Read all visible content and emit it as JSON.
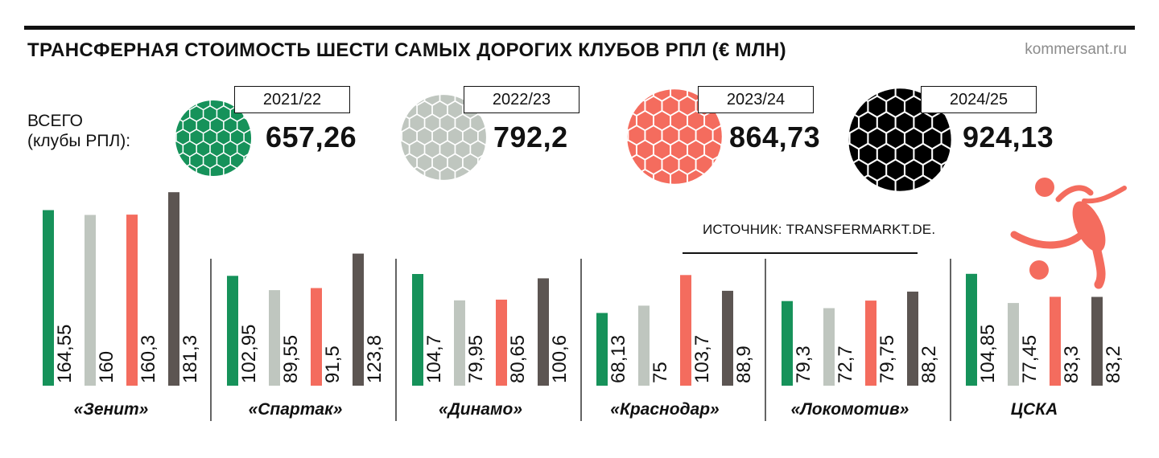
{
  "header": {
    "title": "ТРАНСФЕРНАЯ СТОИМОСТЬ ШЕСТИ САМЫХ ДОРОГИХ КЛУБОВ РПЛ (€ МЛН)",
    "site": "kommersant.ru"
  },
  "totals": {
    "label_line1": "ВСЕГО",
    "label_line2": "(клубы РПЛ):",
    "seasons": [
      {
        "season": "2021/22",
        "total": "657,26",
        "color": "#16925a"
      },
      {
        "season": "2022/23",
        "total": "792,2",
        "color": "#bfc6bf"
      },
      {
        "season": "2023/24",
        "total": "864,73",
        "color": "#f46c5e"
      },
      {
        "season": "2024/25",
        "total": "924,13",
        "color": "#000000"
      }
    ]
  },
  "source": "ИСТОЧНИК: TRANSFERMARKT.DE.",
  "colors": {
    "s2021": "#16925a",
    "s2022": "#bfc6bf",
    "s2023": "#f46c5e",
    "s2024": "#5c5552",
    "player": "#f46c5e"
  },
  "icons": [
    "football-icon",
    "soccer-player-icon"
  ],
  "chart_data": {
    "type": "bar",
    "categories": [
      "«Зенит»",
      "«Спартак»",
      "«Динамо»",
      "«Краснодар»",
      "«Локомотив»",
      "ЦСКА"
    ],
    "series": [
      {
        "name": "2021/22",
        "values": [
          164.55,
          102.95,
          104.7,
          68.13,
          79.3,
          104.85
        ],
        "labels": [
          "164,55",
          "102,95",
          "104,7",
          "68,13",
          "79,3",
          "104,85"
        ]
      },
      {
        "name": "2022/23",
        "values": [
          160,
          89.55,
          79.95,
          75,
          72.7,
          77.45
        ],
        "labels": [
          "160",
          "89,55",
          "79,95",
          "75",
          "72,7",
          "77,45"
        ]
      },
      {
        "name": "2023/24",
        "values": [
          160.3,
          91.5,
          80.65,
          103.7,
          79.75,
          83.3
        ],
        "labels": [
          "160,3",
          "91,5",
          "80,65",
          "103,7",
          "79,75",
          "83,3"
        ]
      },
      {
        "name": "2024/25",
        "values": [
          181.3,
          123.8,
          100.6,
          88.9,
          88.2,
          83.2
        ],
        "labels": [
          "181,3",
          "123,8",
          "100,6",
          "88,9",
          "88,2",
          "83,2"
        ]
      }
    ],
    "unit": "€ млн",
    "grid": false
  }
}
